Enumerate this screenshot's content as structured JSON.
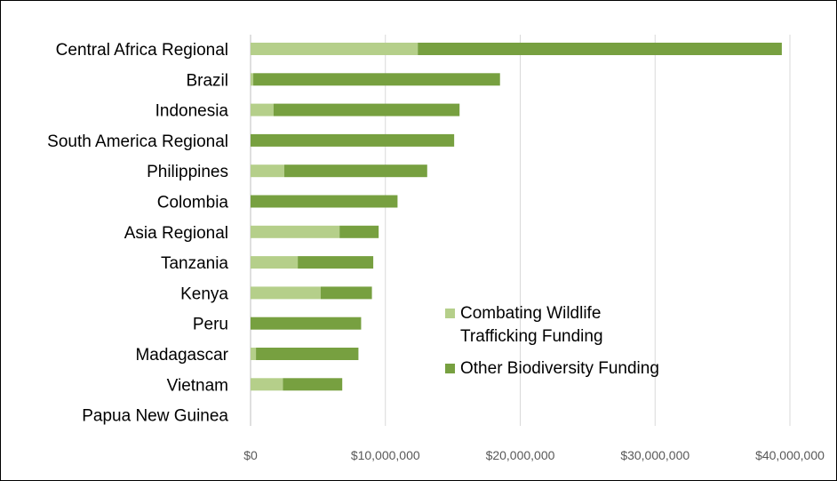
{
  "chart_data": {
    "type": "bar",
    "orientation": "horizontal",
    "stacked": true,
    "categories": [
      "Central Africa Regional",
      "Brazil",
      "Indonesia",
      "South America Regional",
      "Philippines",
      "Colombia",
      "Asia Regional",
      "Tanzania",
      "Kenya",
      "Peru",
      "Madagascar",
      "Vietnam",
      "Papua New Guinea"
    ],
    "series": [
      {
        "name": "Combating Wildlife Trafficking Funding",
        "legend_lines": [
          "Combating Wildlife",
          "Trafficking Funding"
        ],
        "color": "#b5cf8a",
        "values": [
          12400000,
          200000,
          1700000,
          0,
          2500000,
          0,
          6600000,
          3500000,
          5200000,
          0,
          400000,
          2400000,
          0
        ]
      },
      {
        "name": "Other Biodiversity Funding",
        "legend_lines": [
          "Other Biodiversity Funding"
        ],
        "color": "#77a040",
        "values": [
          27000000,
          18300000,
          13800000,
          15100000,
          10600000,
          10900000,
          2900000,
          5600000,
          3800000,
          8200000,
          7600000,
          4400000,
          0
        ]
      }
    ],
    "xlim": [
      0,
      40000000
    ],
    "xticks": [
      0,
      10000000,
      20000000,
      30000000,
      40000000
    ],
    "xtick_labels": [
      "$0",
      "$10,000,000",
      "$20,000,000",
      "$30,000,000",
      "$40,000,000"
    ],
    "title": "",
    "xlabel": "",
    "ylabel": "",
    "grid": "vertical",
    "legend_position": "inside-bottom-right"
  }
}
